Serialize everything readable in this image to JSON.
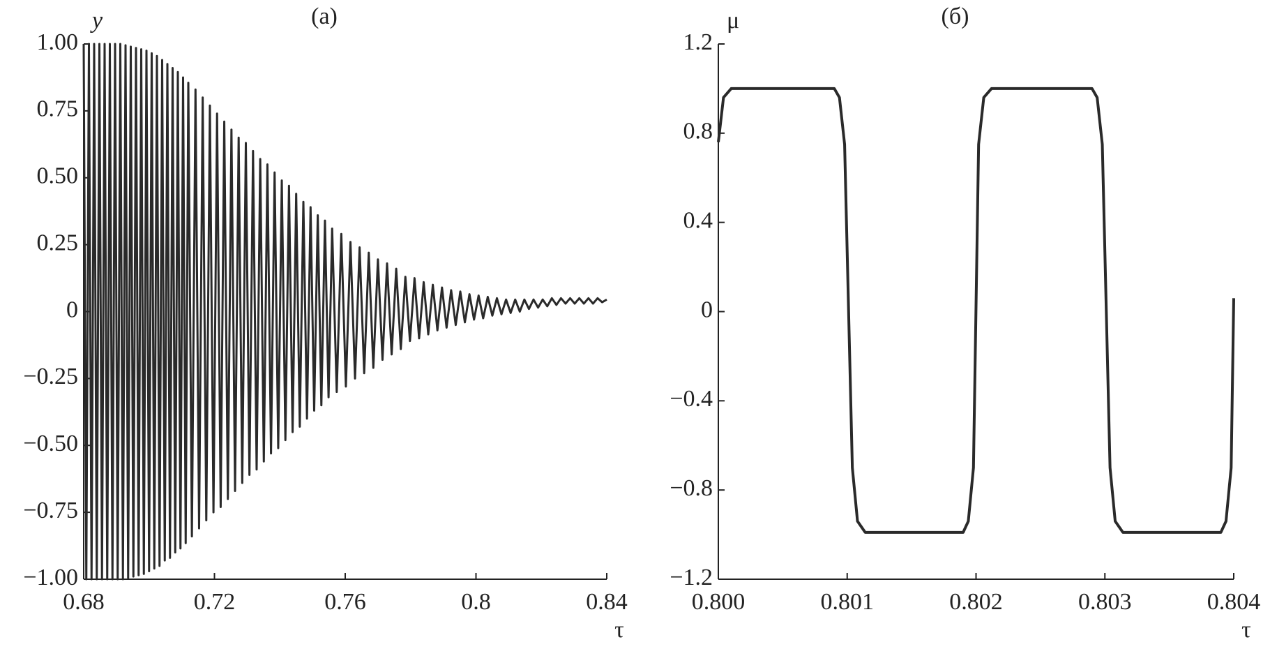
{
  "chart_data": [
    {
      "type": "line",
      "title": "(a)",
      "x_label": "τ",
      "y_label": "y",
      "color": "#2a2a2a",
      "x": [
        0.68,
        0.6808,
        0.6816,
        0.6824,
        0.6832,
        0.684,
        0.6848,
        0.6856,
        0.6864,
        0.6872,
        0.688,
        0.6888,
        0.6896,
        0.6904,
        0.6912,
        0.692,
        0.6928,
        0.6936,
        0.6944,
        0.6952,
        0.696,
        0.6968,
        0.6976,
        0.6984,
        0.6992,
        0.7,
        0.7008,
        0.7016,
        0.7024,
        0.7032,
        0.704,
        0.7048,
        0.7056,
        0.7064,
        0.7072,
        0.708,
        0.7088,
        0.7096,
        0.7104,
        0.7112,
        0.712,
        0.7131,
        0.7142,
        0.7153,
        0.7164,
        0.7175,
        0.7186,
        0.7197,
        0.7208,
        0.7219,
        0.723,
        0.7241,
        0.7252,
        0.7263,
        0.7274,
        0.7285,
        0.7296,
        0.7307,
        0.7318,
        0.7329,
        0.734,
        0.7351,
        0.7362,
        0.7373,
        0.7384,
        0.7395,
        0.7406,
        0.7417,
        0.7428,
        0.7439,
        0.745,
        0.7461,
        0.7472,
        0.7483,
        0.7494,
        0.7505,
        0.7516,
        0.7527,
        0.7538,
        0.7549,
        0.756,
        0.7574,
        0.7588,
        0.7602,
        0.7616,
        0.763,
        0.7644,
        0.7658,
        0.7672,
        0.7686,
        0.77,
        0.7714,
        0.7728,
        0.7742,
        0.7756,
        0.777,
        0.7784,
        0.7798,
        0.7812,
        0.7826,
        0.784,
        0.7854,
        0.7868,
        0.7882,
        0.7896,
        0.791,
        0.7924,
        0.7938,
        0.7952,
        0.7966,
        0.798,
        0.7994,
        0.8008,
        0.8022,
        0.8036,
        0.805,
        0.8064,
        0.8078,
        0.8092,
        0.8106,
        0.812,
        0.8134,
        0.8148,
        0.8162,
        0.8176,
        0.819,
        0.8204,
        0.8218,
        0.8232,
        0.8246,
        0.826,
        0.8274,
        0.8288,
        0.8302,
        0.8316,
        0.833,
        0.8344,
        0.8358,
        0.8372,
        0.8386,
        0.84
      ],
      "values": [
        1,
        -1,
        1,
        -1,
        1,
        -1,
        1,
        -1,
        1,
        -1,
        1,
        -1,
        1,
        -1,
        1,
        -1,
        0.995,
        -0.995,
        0.99,
        -0.99,
        0.985,
        -0.985,
        0.98,
        -0.98,
        0.975,
        -0.97,
        0.965,
        -0.96,
        0.955,
        -0.95,
        0.94,
        -0.93,
        0.925,
        -0.92,
        0.91,
        -0.9,
        0.895,
        -0.885,
        0.875,
        -0.865,
        0.855,
        -0.84,
        0.83,
        -0.81,
        0.8,
        -0.78,
        0.77,
        -0.75,
        0.74,
        -0.73,
        0.71,
        -0.7,
        0.68,
        -0.67,
        0.65,
        -0.64,
        0.63,
        -0.61,
        0.6,
        -0.59,
        0.57,
        -0.56,
        0.55,
        -0.53,
        0.52,
        -0.51,
        0.49,
        -0.48,
        0.47,
        -0.45,
        0.44,
        -0.43,
        0.41,
        -0.4,
        0.39,
        -0.37,
        0.36,
        -0.35,
        0.34,
        -0.32,
        0.31,
        -0.3,
        0.29,
        -0.28,
        0.26,
        -0.25,
        0.24,
        -0.23,
        0.22,
        -0.21,
        0.195,
        -0.18,
        0.18,
        -0.16,
        0.16,
        -0.14,
        0.13,
        -0.11,
        0.125,
        -0.1,
        0.11,
        -0.085,
        0.1,
        -0.07,
        0.09,
        -0.06,
        0.08,
        -0.05,
        0.075,
        -0.04,
        0.065,
        -0.03,
        0.06,
        -0.025,
        0.055,
        -0.015,
        0.05,
        -0.01,
        0.045,
        -0.005,
        0.045,
        0,
        0.045,
        0.01,
        0.045,
        0.015,
        0.045,
        0.02,
        0.05,
        0.025,
        0.05,
        0.03,
        0.05,
        0.03,
        0.05,
        0.03,
        0.05,
        0.03,
        0.05,
        0.035,
        0.045
      ],
      "xlim": [
        0.68,
        0.84
      ],
      "ylim": [
        -1,
        1
      ],
      "xticks": [
        0.68,
        0.72,
        0.76,
        0.8,
        0.84
      ],
      "yticks": [
        {
          "value": 1,
          "label": "1.00"
        },
        {
          "value": 0.75,
          "label": "0.75"
        },
        {
          "value": 0.5,
          "label": "0.50"
        },
        {
          "value": 0.25,
          "label": "0.25"
        },
        0,
        {
          "value": -0.25,
          "label": "−0.25"
        },
        {
          "value": -0.5,
          "label": "−0.50"
        },
        {
          "value": -0.75,
          "label": "−0.75"
        },
        {
          "value": -1,
          "label": "−1.00"
        }
      ]
    },
    {
      "type": "line",
      "title": "(б)",
      "x_label": "τ",
      "y_label": "μ",
      "color": "#2a2a2a",
      "x": [
        0.8,
        0.80004,
        0.8001,
        0.8009,
        0.80094,
        0.80098,
        0.80104,
        0.80108,
        0.80114,
        0.8019,
        0.80194,
        0.80198,
        0.80202,
        0.80206,
        0.80212,
        0.8029,
        0.80294,
        0.80298,
        0.80304,
        0.80308,
        0.80314,
        0.8039,
        0.80394,
        0.80398,
        0.804
      ],
      "values": [
        0.76,
        0.96,
        1,
        1,
        0.96,
        0.75,
        -0.7,
        -0.94,
        -0.99,
        -0.99,
        -0.94,
        -0.7,
        0.75,
        0.96,
        1,
        1,
        0.96,
        0.75,
        -0.7,
        -0.94,
        -0.99,
        -0.99,
        -0.94,
        -0.7,
        0.06
      ],
      "xlim": [
        0.8,
        0.804
      ],
      "ylim": [
        -1.2,
        1.2
      ],
      "xticks": [
        {
          "value": 0.8,
          "label": "0.800"
        },
        {
          "value": 0.801,
          "label": "0.801"
        },
        {
          "value": 0.802,
          "label": "0.802"
        },
        {
          "value": 0.803,
          "label": "0.803"
        },
        {
          "value": 0.804,
          "label": "0.804"
        }
      ],
      "yticks": [
        1.2,
        0.8,
        0.4,
        0,
        {
          "value": -0.4,
          "label": "−0.4"
        },
        {
          "value": -0.8,
          "label": "−0.8"
        },
        {
          "value": -1.2,
          "label": "−1.2"
        }
      ]
    }
  ]
}
